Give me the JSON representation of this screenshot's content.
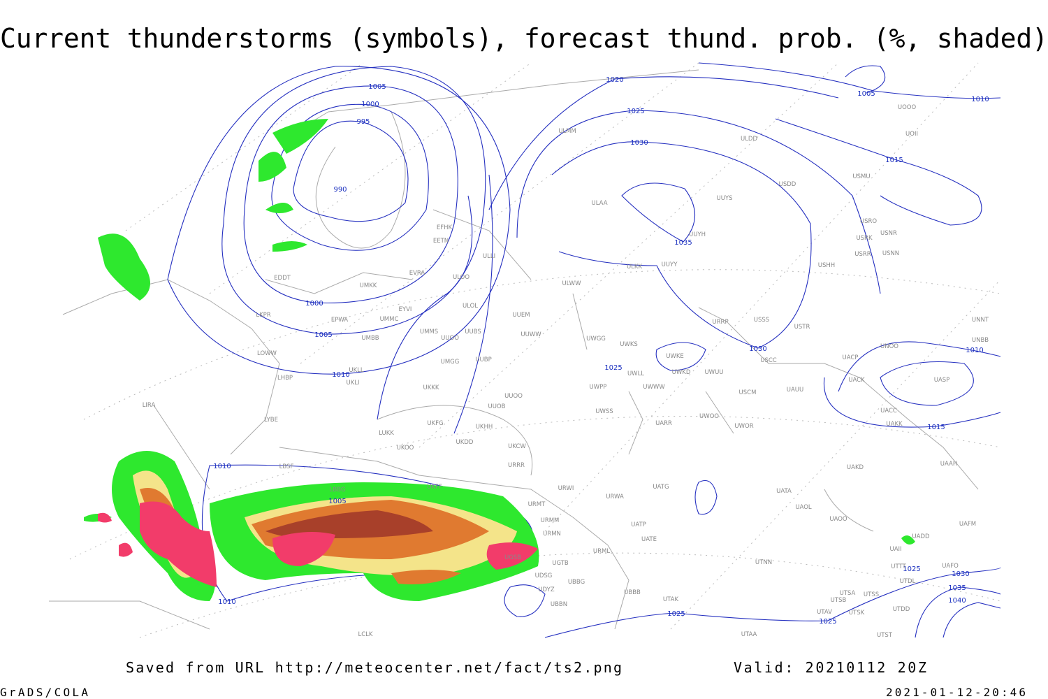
{
  "header": {
    "title": "Current thunderstorms (symbols), forecast thund. prob. (%, shaded)"
  },
  "footer": {
    "saved_from": "Saved from URL http://meteocenter.net/fact/ts2.png",
    "valid": "Valid: 20210112 20Z",
    "software": "GrADS/COLA",
    "timestamp": "2021-01-12-20:46"
  },
  "isobar_labels": [
    1005,
    1000,
    995,
    990,
    1020,
    1025,
    1030,
    1035,
    1000,
    1005,
    1010,
    1025,
    1030,
    1010,
    1015,
    1005,
    1010,
    1015,
    1010,
    1005,
    1010,
    1025,
    1025,
    1025,
    1030,
    1035,
    1040
  ],
  "stations": [
    "ULMM",
    "ULDD",
    "USDD",
    "UOOO",
    "UOII",
    "USMU",
    "ULAA",
    "UUYS",
    "USRO",
    "USNR",
    "USRK",
    "UUYH",
    "USRR",
    "USNN",
    "EFHK",
    "EETN",
    "ULLI",
    "ULKK",
    "UUYY",
    "USHH",
    "EVRA",
    "ULOO",
    "ULWW",
    "EDDT",
    "UMKK",
    "EYVI",
    "ULOL",
    "UUEM",
    "EPWA",
    "UMMC",
    "LKPR",
    "URRP",
    "USSS",
    "USTR",
    "UMMS",
    "UUOO",
    "UUBS",
    "UUWW",
    "UWGG",
    "UWKS",
    "UMBB",
    "UNNT",
    "UNBB",
    "LOWW",
    "UKLL",
    "UKLI",
    "UMGG",
    "UUBP",
    "UWKE",
    "UWKD",
    "UWUU",
    "USCC",
    "UNOO",
    "UACP",
    "UWLL",
    "LHBP",
    "UACK",
    "UASP",
    "UWPP",
    "UWWW",
    "UKKK",
    "USCM",
    "UAUU",
    "UUOO",
    "LIRA",
    "UUOB",
    "UWSS",
    "UACC",
    "UAKK",
    "LYBE",
    "UWOO",
    "UARR",
    "UWOR",
    "UKHH",
    "UKFG",
    "UKDD",
    "LUKK",
    "LBSF",
    "UKOO",
    "UKCW",
    "URRR",
    "LBBG",
    "UKFF",
    "URWI",
    "UATG",
    "URWA",
    "UATA",
    "UAOL",
    "UAOO",
    "URMT",
    "URMM",
    "URMN",
    "UATP",
    "UATE",
    "UAFM",
    "UADD",
    "UAII",
    "URML",
    "UGTB",
    "UGSB",
    "UTNN",
    "UTTT",
    "UAFO",
    "UTDL",
    "UDSG",
    "UBBG",
    "UDYZ",
    "UBBN",
    "UBBB",
    "UTAK",
    "UTSA",
    "UTSS",
    "UTSB",
    "UTAV",
    "UTSK",
    "UTDD",
    "LCLK",
    "UTAA",
    "UTST",
    "UAKD",
    "UAAH"
  ]
}
